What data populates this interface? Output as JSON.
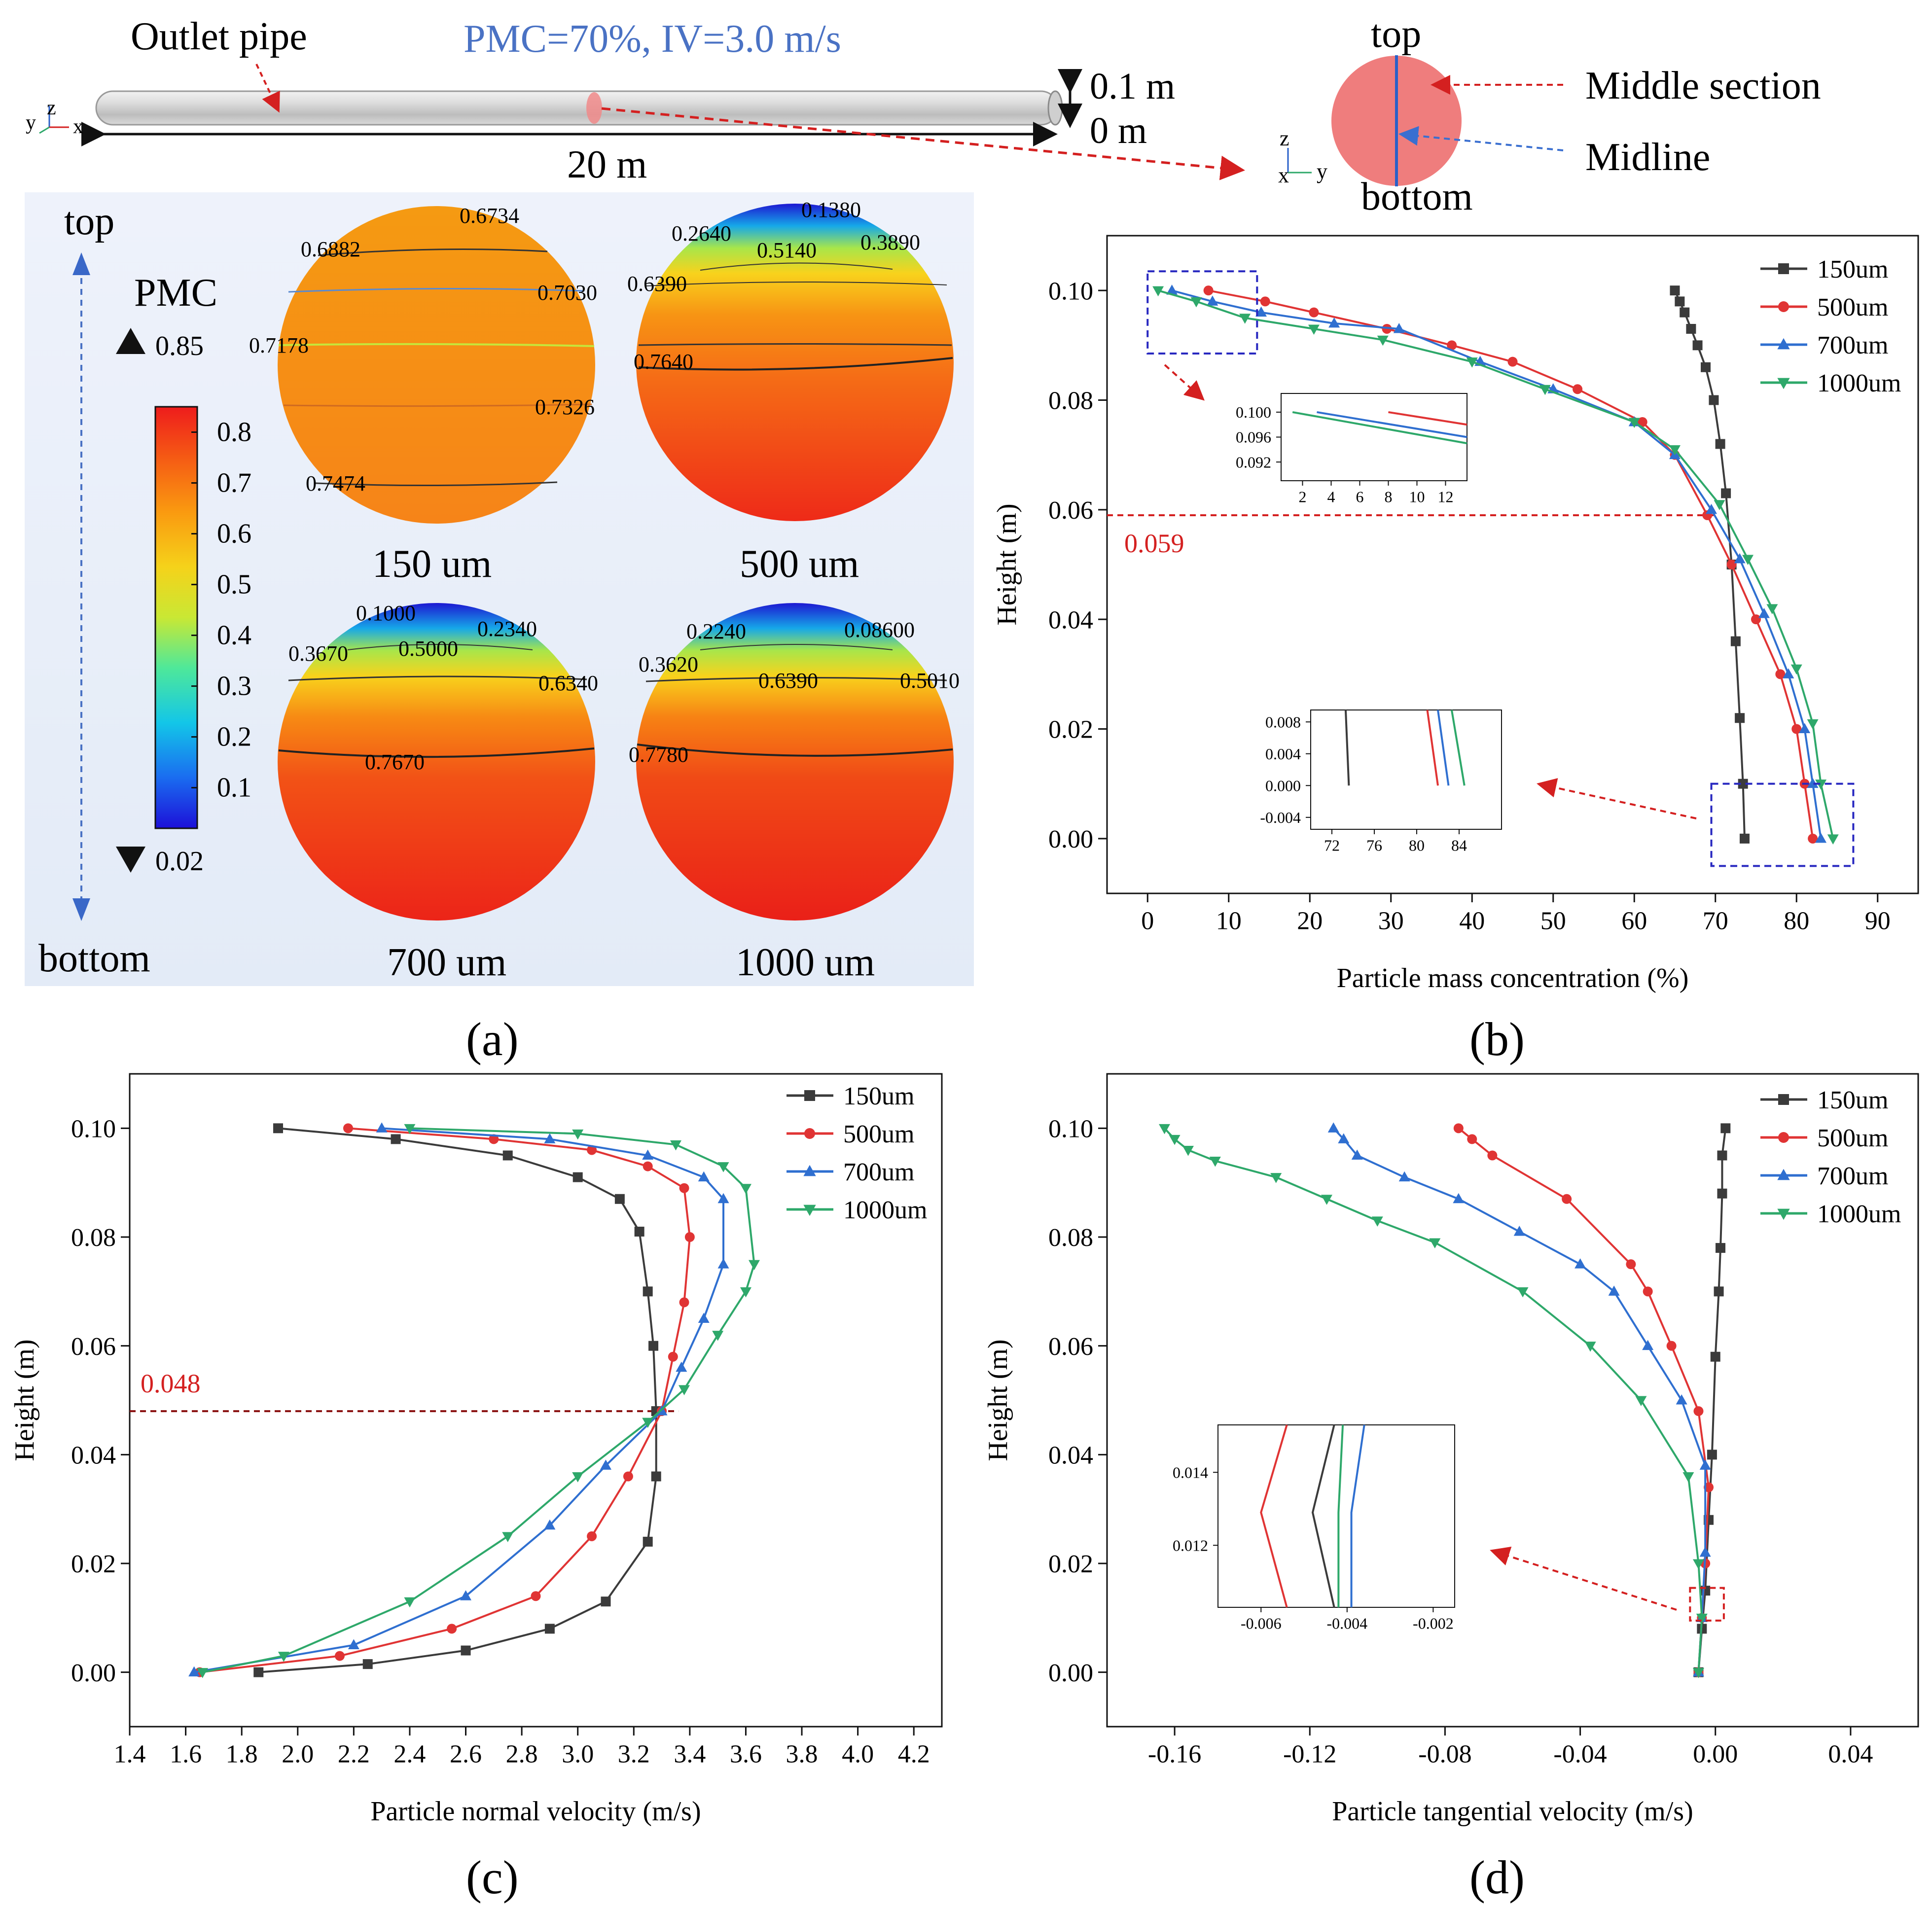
{
  "header": {
    "outlet_label": "Outlet pipe",
    "case_label": "PMC=70%, IV=3.0 m/s",
    "length_label": "20 m",
    "top_dim_label": "0.1 m",
    "bottom_dim_label": "0 m",
    "axis_y": "y",
    "axis_z": "z",
    "axis_x": "x"
  },
  "section": {
    "top_label": "top",
    "bottom_label": "bottom",
    "middle_section_label": "Middle section",
    "midline_label": "Midline",
    "axis_z": "z",
    "axis_x": "x",
    "axis_y": "y"
  },
  "panel_a": {
    "top_label": "top",
    "bottom_label": "bottom",
    "colorbar": {
      "title": "PMC",
      "max_label": "0.85",
      "min_label": "0.02",
      "ticks": [
        "0.8",
        "0.7",
        "0.6",
        "0.5",
        "0.4",
        "0.3",
        "0.2",
        "0.1"
      ],
      "tick_values": [
        0.8,
        0.7,
        0.6,
        0.5,
        0.4,
        0.3,
        0.2,
        0.1
      ],
      "min": 0.02,
      "max": 0.85
    },
    "cases": [
      {
        "label": "150 um",
        "contours": [
          "0.6734",
          "0.6882",
          "0.7030",
          "0.7178",
          "0.7326",
          "0.7474"
        ]
      },
      {
        "label": "500 um",
        "contours": [
          "0.1380",
          "0.2640",
          "0.3890",
          "0.5140",
          "0.6390",
          "0.7640"
        ]
      },
      {
        "label": "700 um",
        "contours": [
          "0.1000",
          "0.2340",
          "0.3670",
          "0.5000",
          "0.6340",
          "0.7670"
        ]
      },
      {
        "label": "1000 um",
        "contours": [
          "0.08600",
          "0.2240",
          "0.3620",
          "0.5010",
          "0.6390",
          "0.7780"
        ]
      }
    ]
  },
  "panel_labels": {
    "a": "(a)",
    "b": "(b)",
    "c": "(c)",
    "d": "(d)"
  },
  "colors": {
    "s150": "#3b3b3b",
    "s500": "#e03434",
    "s700": "#2f6fd0",
    "s1000": "#2ea86a",
    "annot": "#d42020",
    "box": "#2828c0"
  },
  "chart_data": [
    {
      "id": "b",
      "type": "line",
      "xlabel": "Particle mass concentration  (%)",
      "ylabel": "Height (m)",
      "xlim": [
        -5,
        95
      ],
      "ylim": [
        -0.01,
        0.11
      ],
      "xticks": [
        0,
        10,
        20,
        30,
        40,
        50,
        60,
        70,
        80,
        90
      ],
      "yticks": [
        0.0,
        0.02,
        0.04,
        0.06,
        0.08,
        0.1
      ],
      "ytick_labels": [
        "0.00",
        "0.02",
        "0.04",
        "0.06",
        "0.08",
        "0.10"
      ],
      "annotation": {
        "value": "0.059",
        "y": 0.059
      },
      "legend": [
        "150um",
        "500um",
        "700um",
        "1000um"
      ],
      "series": [
        {
          "name": "150um",
          "x": [
            65,
            65.6,
            66.2,
            67,
            67.8,
            68.8,
            69.8,
            70.6,
            71.3,
            72,
            72.5,
            73,
            73.4,
            73.6
          ],
          "y": [
            0.1,
            0.098,
            0.096,
            0.093,
            0.09,
            0.086,
            0.08,
            0.072,
            0.063,
            0.05,
            0.036,
            0.022,
            0.01,
            0.0
          ]
        },
        {
          "name": "500um",
          "x": [
            7.5,
            14.5,
            20.5,
            29.5,
            37.5,
            45,
            53,
            61,
            65,
            69,
            72,
            75,
            78,
            80,
            81,
            82
          ],
          "y": [
            0.1,
            0.098,
            0.096,
            0.093,
            0.09,
            0.087,
            0.082,
            0.076,
            0.07,
            0.059,
            0.05,
            0.04,
            0.03,
            0.02,
            0.01,
            0.0
          ]
        },
        {
          "name": "700um",
          "x": [
            3,
            8,
            14,
            23,
            31,
            41,
            50,
            60,
            65,
            69.5,
            73,
            76,
            79,
            81,
            82,
            83
          ],
          "y": [
            0.1,
            0.098,
            0.096,
            0.094,
            0.093,
            0.087,
            0.082,
            0.076,
            0.07,
            0.06,
            0.051,
            0.041,
            0.03,
            0.02,
            0.01,
            0.0
          ]
        },
        {
          "name": "1000um",
          "x": [
            1.3,
            6,
            12,
            20.5,
            29,
            40,
            49,
            60,
            65,
            70.5,
            74,
            77,
            80,
            82,
            83,
            84.5
          ],
          "y": [
            0.1,
            0.098,
            0.095,
            0.093,
            0.091,
            0.087,
            0.082,
            0.076,
            0.071,
            0.061,
            0.051,
            0.042,
            0.031,
            0.021,
            0.01,
            0.0
          ]
        }
      ],
      "insets": [
        {
          "xlim": [
            0.5,
            13.5
          ],
          "ylim": [
            0.089,
            0.103
          ],
          "xticks": [
            2,
            4,
            6,
            8,
            10,
            12
          ],
          "yticks": [
            0.092,
            0.096,
            0.1
          ],
          "ytick_labels": [
            "0.092",
            "0.096",
            "0.100"
          ],
          "series": [
            {
              "name": "500um",
              "x": [
                8,
                13.5
              ],
              "y": [
                0.1,
                0.098
              ]
            },
            {
              "name": "700um",
              "x": [
                3,
                13.5
              ],
              "y": [
                0.1,
                0.096
              ]
            },
            {
              "name": "1000um",
              "x": [
                1.3,
                13.5
              ],
              "y": [
                0.1,
                0.095
              ]
            }
          ]
        },
        {
          "xlim": [
            70,
            88
          ],
          "ylim": [
            -0.0055,
            0.0095
          ],
          "xticks": [
            72,
            76,
            80,
            84
          ],
          "yticks": [
            -0.004,
            0.0,
            0.004,
            0.008
          ],
          "ytick_labels": [
            "-0.004",
            "0.000",
            "0.004",
            "0.008"
          ],
          "series": [
            {
              "name": "150um",
              "x": [
                73.3,
                73.6
              ],
              "y": [
                0.0095,
                0.0
              ]
            },
            {
              "name": "500um",
              "x": [
                81,
                82
              ],
              "y": [
                0.0095,
                0.0
              ]
            },
            {
              "name": "700um",
              "x": [
                82,
                83
              ],
              "y": [
                0.0095,
                0.0
              ]
            },
            {
              "name": "1000um",
              "x": [
                83.3,
                84.5
              ],
              "y": [
                0.0095,
                0.0
              ]
            }
          ]
        }
      ]
    },
    {
      "id": "c",
      "type": "line",
      "xlabel": "Particle normal velocity (m/s)",
      "ylabel": "Height (m)",
      "xlim": [
        1.4,
        4.3
      ],
      "ylim": [
        -0.01,
        0.11
      ],
      "xticks": [
        1.4,
        1.6,
        1.8,
        2.0,
        2.2,
        2.4,
        2.6,
        2.8,
        3.0,
        3.2,
        3.4,
        3.6,
        3.8,
        4.0,
        4.2
      ],
      "xtick_labels": [
        "1.4",
        "1.6",
        "1.8",
        "2.0",
        "2.2",
        "2.4",
        "2.6",
        "2.8",
        "3.0",
        "3.2",
        "3.4",
        "3.6",
        "3.8",
        "4.0",
        "4.2"
      ],
      "yticks": [
        0.0,
        0.02,
        0.04,
        0.06,
        0.08,
        0.1
      ],
      "ytick_labels": [
        "0.00",
        "0.02",
        "0.04",
        "0.06",
        "0.08",
        "0.10"
      ],
      "annotation": {
        "value": "0.048",
        "y": 0.048
      },
      "legend": [
        "150um",
        "500um",
        "700um",
        "1000um"
      ],
      "series": [
        {
          "name": "150um",
          "x": [
            1.93,
            2.35,
            2.75,
            3.0,
            3.15,
            3.22,
            3.25,
            3.27,
            3.28,
            3.28,
            3.25,
            3.1,
            2.9,
            2.6,
            2.25,
            1.86
          ],
          "y": [
            0.1,
            0.098,
            0.095,
            0.091,
            0.087,
            0.081,
            0.07,
            0.06,
            0.048,
            0.036,
            0.024,
            0.013,
            0.008,
            0.004,
            0.0015,
            0.0
          ]
        },
        {
          "name": "500um",
          "x": [
            2.18,
            2.7,
            3.05,
            3.25,
            3.38,
            3.4,
            3.38,
            3.34,
            3.3,
            3.18,
            3.05,
            2.85,
            2.55,
            2.15,
            1.65
          ],
          "y": [
            0.1,
            0.098,
            0.096,
            0.093,
            0.089,
            0.08,
            0.068,
            0.058,
            0.048,
            0.036,
            0.025,
            0.014,
            0.008,
            0.003,
            0.0
          ]
        },
        {
          "name": "700um",
          "x": [
            2.3,
            2.9,
            3.25,
            3.45,
            3.52,
            3.52,
            3.45,
            3.37,
            3.3,
            3.1,
            2.9,
            2.6,
            2.2,
            1.63
          ],
          "y": [
            0.1,
            0.098,
            0.095,
            0.091,
            0.087,
            0.075,
            0.065,
            0.056,
            0.048,
            0.038,
            0.027,
            0.014,
            0.005,
            0.0
          ]
        },
        {
          "name": "1000um",
          "x": [
            2.4,
            3.0,
            3.35,
            3.52,
            3.6,
            3.63,
            3.6,
            3.5,
            3.38,
            3.25,
            3.0,
            2.75,
            2.4,
            1.95,
            1.66
          ],
          "y": [
            0.1,
            0.099,
            0.097,
            0.093,
            0.089,
            0.075,
            0.07,
            0.062,
            0.052,
            0.046,
            0.036,
            0.025,
            0.013,
            0.003,
            0.0
          ]
        }
      ]
    },
    {
      "id": "d",
      "type": "line",
      "xlabel": "Particle tangential velocity (m/s)",
      "ylabel": "Height (m)",
      "xlim": [
        -0.18,
        0.06
      ],
      "ylim": [
        -0.01,
        0.11
      ],
      "xticks": [
        -0.16,
        -0.12,
        -0.08,
        -0.04,
        0.0,
        0.04
      ],
      "xtick_labels": [
        "-0.16",
        "-0.12",
        "-0.08",
        "-0.04",
        "0.00",
        "0.04"
      ],
      "yticks": [
        0.0,
        0.02,
        0.04,
        0.06,
        0.08,
        0.1
      ],
      "ytick_labels": [
        "0.00",
        "0.02",
        "0.04",
        "0.06",
        "0.08",
        "0.10"
      ],
      "legend": [
        "150um",
        "500um",
        "700um",
        "1000um"
      ],
      "series": [
        {
          "name": "150um",
          "x": [
            0.003,
            0.002,
            0.002,
            0.0015,
            0.001,
            0.0,
            -0.001,
            -0.002,
            -0.003,
            -0.004,
            -0.005
          ],
          "y": [
            0.1,
            0.095,
            0.088,
            0.078,
            0.07,
            0.058,
            0.04,
            0.028,
            0.015,
            0.008,
            0.0
          ]
        },
        {
          "name": "500um",
          "x": [
            -0.076,
            -0.072,
            -0.066,
            -0.044,
            -0.025,
            -0.02,
            -0.013,
            -0.005,
            -0.002,
            -0.003,
            -0.004,
            -0.005
          ],
          "y": [
            0.1,
            0.098,
            0.095,
            0.087,
            0.075,
            0.07,
            0.06,
            0.048,
            0.034,
            0.02,
            0.01,
            0.0
          ]
        },
        {
          "name": "700um",
          "x": [
            -0.113,
            -0.11,
            -0.106,
            -0.092,
            -0.076,
            -0.058,
            -0.04,
            -0.03,
            -0.02,
            -0.01,
            -0.003,
            -0.003,
            -0.004,
            -0.005
          ],
          "y": [
            0.1,
            0.098,
            0.095,
            0.091,
            0.087,
            0.081,
            0.075,
            0.07,
            0.06,
            0.05,
            0.038,
            0.022,
            0.01,
            0.0
          ]
        },
        {
          "name": "1000um",
          "x": [
            -0.163,
            -0.16,
            -0.156,
            -0.148,
            -0.13,
            -0.115,
            -0.1,
            -0.083,
            -0.057,
            -0.037,
            -0.022,
            -0.008,
            -0.005,
            -0.004,
            -0.005
          ],
          "y": [
            0.1,
            0.098,
            0.096,
            0.094,
            0.091,
            0.087,
            0.083,
            0.079,
            0.07,
            0.06,
            0.05,
            0.036,
            0.02,
            0.01,
            0.0
          ]
        }
      ],
      "insets": [
        {
          "xlim": [
            -0.007,
            -0.0015
          ],
          "ylim": [
            0.0103,
            0.0153
          ],
          "xticks": [
            -0.006,
            -0.004,
            -0.002
          ],
          "xtick_labels": [
            "-0.006",
            "-0.004",
            "-0.002"
          ],
          "yticks": [
            0.012,
            0.014
          ],
          "ytick_labels": [
            "0.012",
            "0.014"
          ],
          "series": [
            {
              "name": "500um",
              "x": [
                -0.0054,
                -0.006,
                -0.0054
              ],
              "y": [
                0.0153,
                0.0129,
                0.0103
              ]
            },
            {
              "name": "150um",
              "x": [
                -0.0043,
                -0.0048,
                -0.0043
              ],
              "y": [
                0.0153,
                0.0129,
                0.0103
              ]
            },
            {
              "name": "1000um",
              "x": [
                -0.0041,
                -0.0042,
                -0.0042
              ],
              "y": [
                0.0153,
                0.0129,
                0.0103
              ]
            },
            {
              "name": "700um",
              "x": [
                -0.0036,
                -0.0039,
                -0.0039
              ],
              "y": [
                0.0153,
                0.0129,
                0.0103
              ]
            }
          ]
        }
      ]
    }
  ]
}
